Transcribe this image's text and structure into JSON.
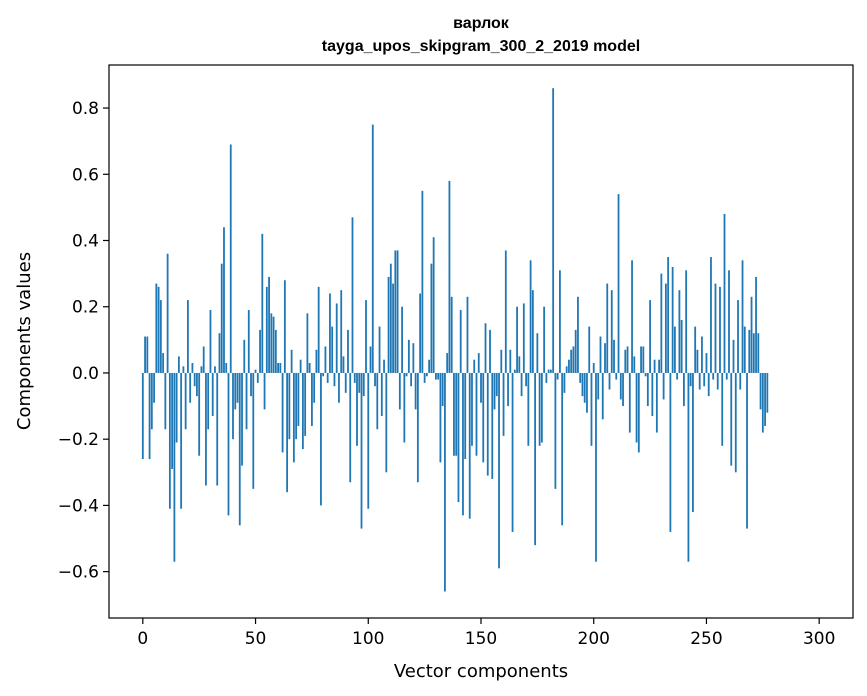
{
  "chart_data": {
    "type": "bar",
    "title": "варлок",
    "subtitle": "tayga_upos_skipgram_300_2_2019 model",
    "xlabel": "Vector components",
    "ylabel": "Components values",
    "xlim": [
      -15,
      315
    ],
    "ylim": [
      -0.74,
      0.93
    ],
    "xticks": [
      0,
      50,
      100,
      150,
      200,
      250,
      300
    ],
    "yticks": [
      -0.6,
      -0.4,
      -0.2,
      0.0,
      0.2,
      0.4,
      0.6,
      0.8
    ],
    "xtick_labels": [
      "0",
      "50",
      "100",
      "150",
      "200",
      "250",
      "300"
    ],
    "ytick_labels": [
      "−0.6",
      "−0.4",
      "−0.2",
      "0.0",
      "0.2",
      "0.4",
      "0.6",
      "0.8"
    ],
    "grid": false,
    "color": "#1f77b4",
    "values": [
      -0.26,
      0.11,
      0.11,
      -0.26,
      -0.17,
      -0.09,
      0.27,
      0.26,
      0.22,
      0.06,
      -0.17,
      0.36,
      -0.41,
      -0.29,
      -0.57,
      -0.21,
      0.05,
      -0.41,
      0.02,
      -0.17,
      0.22,
      -0.09,
      0.03,
      -0.04,
      -0.07,
      -0.25,
      0.02,
      0.08,
      -0.34,
      -0.17,
      0.19,
      -0.13,
      0.02,
      -0.34,
      0.12,
      0.33,
      0.44,
      0.03,
      -0.43,
      0.69,
      -0.2,
      -0.11,
      -0.09,
      -0.46,
      -0.28,
      0.1,
      -0.17,
      0.19,
      -0.07,
      -0.35,
      0.01,
      -0.03,
      0.13,
      0.42,
      -0.11,
      0.26,
      0.29,
      0.18,
      0.17,
      0.13,
      0.03,
      0.03,
      -0.24,
      0.28,
      -0.36,
      -0.2,
      0.07,
      -0.27,
      -0.2,
      -0.16,
      0.04,
      -0.23,
      -0.19,
      0.18,
      0.03,
      -0.16,
      -0.09,
      0.07,
      0.26,
      -0.4,
      -0.01,
      0.08,
      -0.03,
      0.24,
      0.14,
      -0.04,
      0.21,
      -0.09,
      0.25,
      0.05,
      -0.06,
      0.13,
      -0.33,
      0.47,
      -0.03,
      -0.22,
      -0.06,
      -0.47,
      -0.07,
      0.22,
      -0.41,
      0.08,
      0.75,
      -0.04,
      -0.17,
      0.14,
      -0.13,
      0.04,
      -0.3,
      0.29,
      0.33,
      0.27,
      0.37,
      0.37,
      -0.11,
      0.2,
      -0.21,
      -0.01,
      0.1,
      -0.04,
      0.09,
      -0.11,
      -0.33,
      0.24,
      0.55,
      -0.03,
      -0.01,
      0.04,
      0.33,
      0.41,
      -0.02,
      -0.02,
      -0.27,
      -0.1,
      -0.66,
      0.06,
      0.58,
      0.23,
      -0.25,
      -0.25,
      -0.39,
      0.19,
      -0.43,
      -0.26,
      0.23,
      -0.44,
      -0.22,
      0.04,
      -0.25,
      0.06,
      -0.09,
      -0.27,
      0.15,
      -0.31,
      0.13,
      -0.32,
      -0.11,
      -0.07,
      -0.59,
      0.07,
      -0.19,
      0.37,
      -0.1,
      0.07,
      -0.48,
      0.01,
      0.2,
      0.05,
      -0.07,
      0.21,
      -0.04,
      -0.22,
      0.34,
      0.25,
      -0.52,
      0.12,
      -0.22,
      -0.21,
      0.2,
      -0.03,
      0.01,
      0.01,
      0.86,
      -0.35,
      -0.02,
      0.31,
      -0.46,
      -0.06,
      0.02,
      0.04,
      0.07,
      0.08,
      0.13,
      0.23,
      -0.03,
      -0.07,
      -0.09,
      -0.12,
      0.14,
      -0.22,
      0.03,
      -0.57,
      -0.08,
      0.11,
      -0.14,
      0.09,
      0.27,
      -0.05,
      0.25,
      0.1,
      -0.02,
      0.54,
      -0.08,
      -0.1,
      0.07,
      0.08,
      -0.18,
      0.34,
      0.05,
      -0.21,
      -0.24,
      0.08,
      0.08,
      -0.01,
      -0.1,
      0.22,
      -0.13,
      0.04,
      -0.18,
      0.04,
      0.3,
      -0.08,
      0.27,
      0.35,
      -0.48,
      0.32,
      0.14,
      -0.02,
      0.25,
      0.16,
      -0.1,
      0.31,
      -0.57,
      -0.04,
      -0.42,
      0.14,
      0.07,
      -0.05,
      0.11,
      -0.04,
      0.06,
      -0.07,
      0.35,
      -0.02,
      0.27,
      -0.05,
      0.26,
      -0.22,
      0.48,
      -0.02,
      0.31,
      -0.28,
      0.1,
      -0.3,
      0.22,
      -0.05,
      0.34,
      0.14,
      -0.47,
      0.13,
      0.23,
      0.12,
      0.29,
      0.12,
      -0.11,
      -0.18,
      -0.16,
      -0.12
    ]
  }
}
